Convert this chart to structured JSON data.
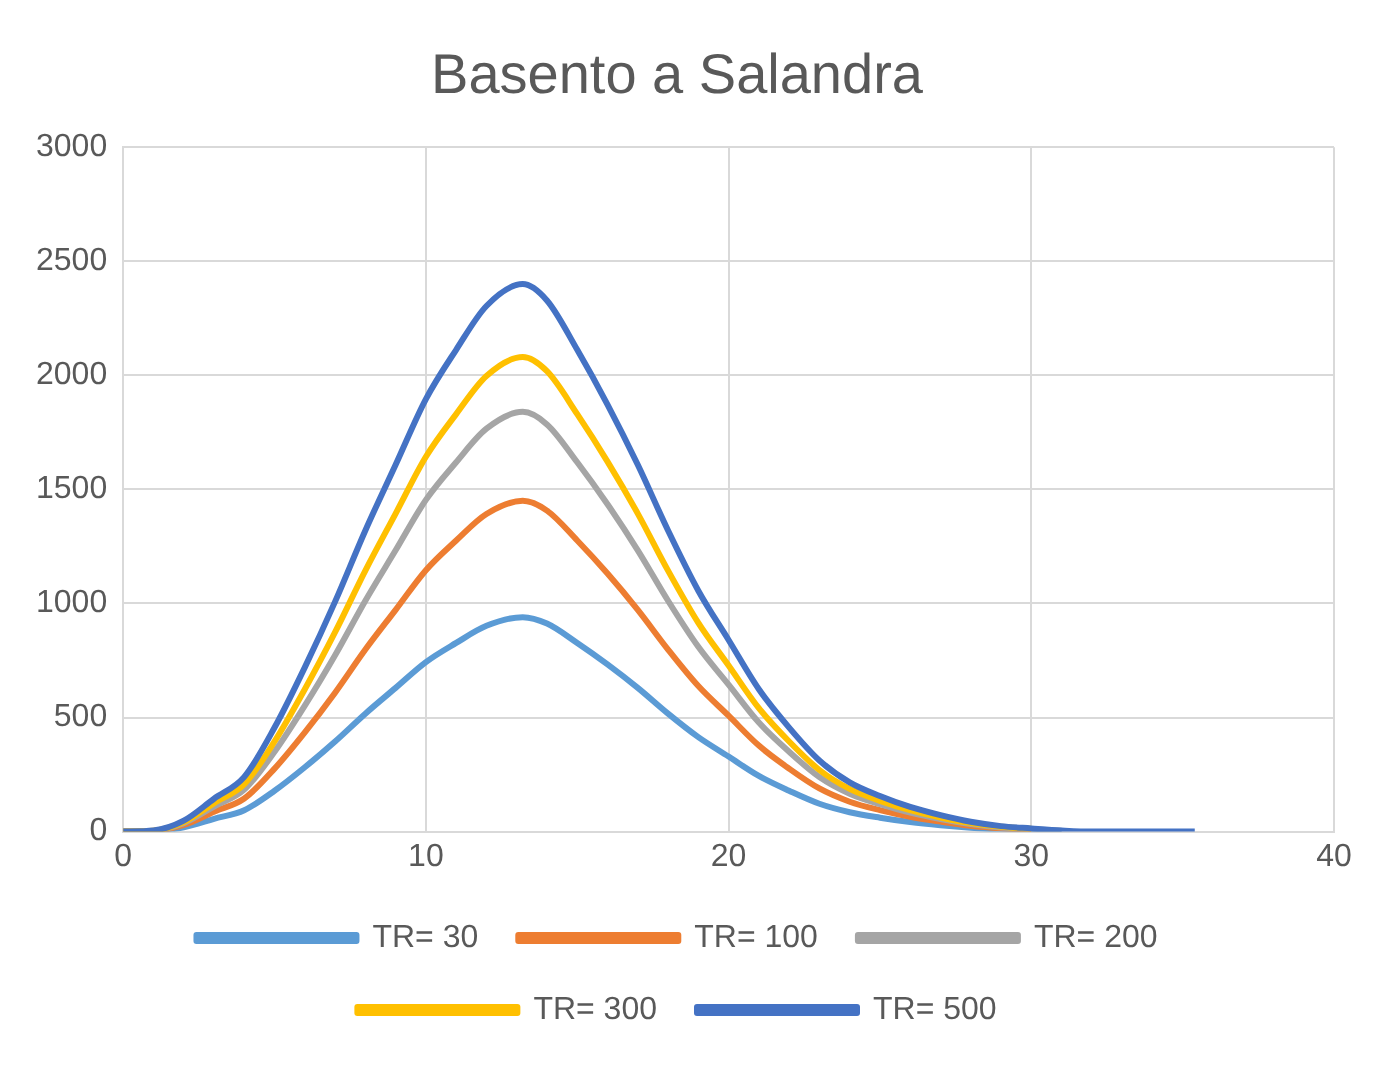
{
  "chart_data": {
    "type": "line",
    "title": "Basento a Salandra",
    "x": [
      0,
      1,
      2,
      3,
      4,
      5,
      6,
      7,
      8,
      9,
      10,
      11,
      12,
      13.2,
      14,
      15,
      16,
      17,
      18,
      19,
      20,
      21,
      22,
      23,
      24,
      25,
      26,
      27,
      28,
      29,
      30,
      31,
      32,
      35.4
    ],
    "series": [
      {
        "name": "TR= 30",
        "color": "#5b9bd5",
        "values": [
          0,
          2,
          19,
          56,
          94,
          179,
          282,
          395,
          517,
          630,
          743,
          827,
          902,
          940,
          912,
          827,
          733,
          630,
          517,
          414,
          329,
          244,
          179,
          122,
          85,
          61,
          42,
          28,
          17,
          9,
          6,
          2,
          null,
          null
        ]
      },
      {
        "name": "TR= 100",
        "color": "#ed7d31",
        "values": [
          0,
          3,
          29,
          87,
          145,
          276,
          435,
          609,
          798,
          972,
          1146,
          1276,
          1392,
          1450,
          1407,
          1276,
          1131,
          972,
          798,
          638,
          508,
          377,
          276,
          189,
          131,
          94,
          65,
          44,
          26,
          15,
          9,
          null,
          null,
          null
        ]
      },
      {
        "name": "TR= 200",
        "color": "#a5a5a5",
        "values": [
          0,
          4,
          37,
          110,
          184,
          350,
          552,
          773,
          1012,
          1233,
          1454,
          1619,
          1766,
          1840,
          1785,
          1619,
          1435,
          1233,
          1012,
          810,
          644,
          478,
          350,
          239,
          166,
          120,
          83,
          55,
          33,
          18,
          11,
          4,
          null,
          null
        ]
      },
      {
        "name": "TR= 300",
        "color": "#ffc000",
        "values": [
          0,
          4,
          42,
          125,
          208,
          395,
          624,
          874,
          1144,
          1394,
          1643,
          1830,
          1997,
          2080,
          2018,
          1830,
          1622,
          1394,
          1144,
          915,
          728,
          541,
          395,
          270,
          187,
          135,
          94,
          62,
          37,
          21,
          12,
          null,
          null,
          null
        ]
      },
      {
        "name": "TR= 500",
        "color": "#4472c4",
        "values": [
          0,
          5,
          48,
          144,
          240,
          456,
          720,
          1008,
          1320,
          1608,
          1896,
          2112,
          2304,
          2400,
          2328,
          2112,
          1872,
          1608,
          1320,
          1056,
          840,
          624,
          456,
          312,
          216,
          156,
          108,
          72,
          43,
          24,
          14,
          5,
          0,
          0
        ]
      }
    ],
    "xlim": [
      0,
      40
    ],
    "xticks": [
      0,
      10,
      20,
      30,
      40
    ],
    "ylim": [
      0,
      3000
    ],
    "yticks": [
      0,
      500,
      1000,
      1500,
      2000,
      2500,
      3000
    ],
    "grid": true,
    "legend": "bottom",
    "marker": "none",
    "line_style": "solid"
  }
}
